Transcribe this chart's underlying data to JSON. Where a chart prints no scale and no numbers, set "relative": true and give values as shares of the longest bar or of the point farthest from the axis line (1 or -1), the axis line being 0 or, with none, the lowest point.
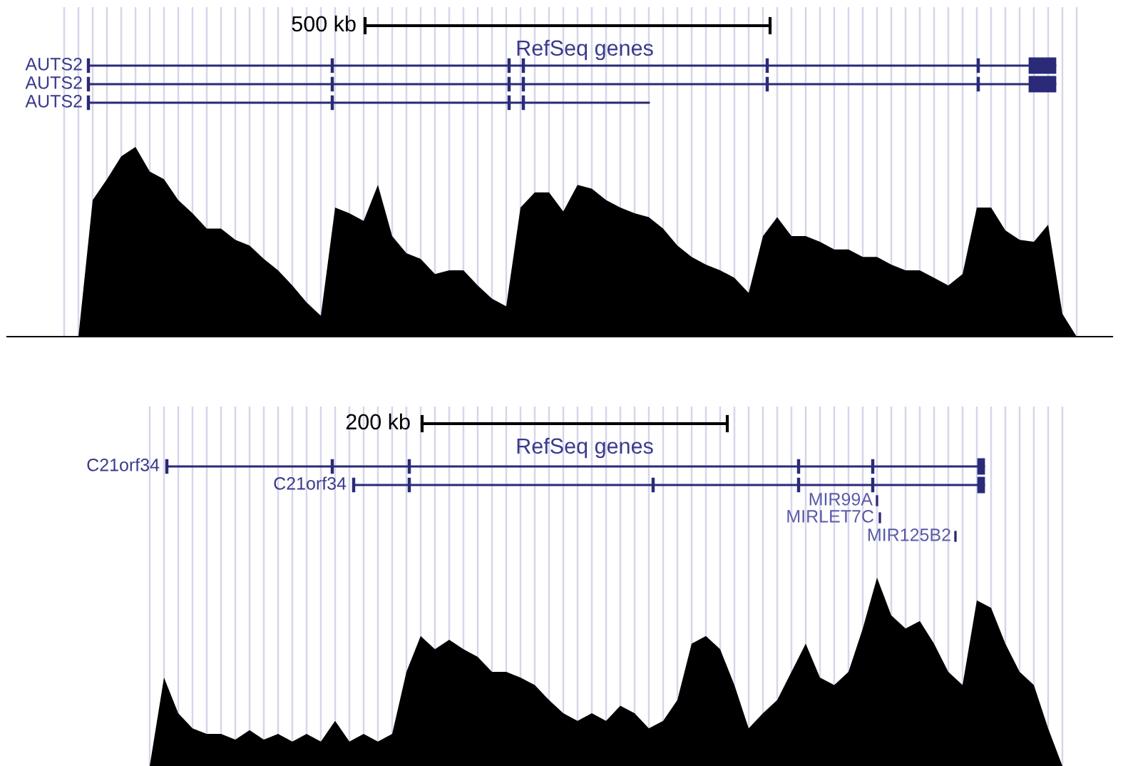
{
  "chart_data": [
    {
      "type": "area",
      "relative": true,
      "color": "#000000",
      "grid": "x",
      "annotations": [
        "500 kb",
        "RefSeq genes",
        "AUTS2",
        "AUTS2",
        "AUTS2"
      ],
      "categories": [
        null,
        null,
        null,
        null,
        null,
        null,
        null,
        null,
        null,
        null,
        null,
        null,
        null,
        null,
        null,
        null,
        null,
        null,
        null,
        null,
        null,
        null,
        null,
        null,
        null,
        null,
        null,
        null,
        null,
        null,
        null,
        null,
        null,
        null,
        null,
        null,
        null,
        null,
        null,
        null,
        null,
        null,
        null,
        null,
        null,
        null,
        null,
        null,
        null,
        null,
        null,
        null,
        null,
        null,
        null,
        null,
        null,
        null,
        null,
        null,
        null,
        null,
        null,
        null,
        null,
        null,
        null,
        null,
        null,
        null,
        null,
        null
      ],
      "values": [
        0,
        0,
        0.72,
        0.83,
        0.95,
        1,
        0.87,
        0.83,
        0.72,
        0.65,
        0.57,
        0.57,
        0.51,
        0.48,
        0.41,
        0.35,
        0.27,
        0.18,
        0.11,
        0.68,
        0.65,
        0.61,
        0.8,
        0.53,
        0.44,
        0.41,
        0.33,
        0.35,
        0.35,
        0.27,
        0.2,
        0.16,
        0.68,
        0.76,
        0.76,
        0.66,
        0.8,
        0.78,
        0.72,
        0.68,
        0.65,
        0.63,
        0.57,
        0.48,
        0.42,
        0.38,
        0.35,
        0.31,
        0.23,
        0.53,
        0.63,
        0.53,
        0.53,
        0.5,
        0.46,
        0.46,
        0.42,
        0.42,
        0.38,
        0.35,
        0.35,
        0.31,
        0.27,
        0.33,
        0.68,
        0.68,
        0.56,
        0.51,
        0.5,
        0.59,
        0.12,
        0
      ]
    },
    {
      "type": "area",
      "relative": true,
      "color": "#000000",
      "grid": "x",
      "annotations": [
        "200 kb",
        "RefSeq genes",
        "C21orf34",
        "C21orf34",
        "MIR99A",
        "MIRLET7C",
        "MIR125B2"
      ],
      "categories": [
        null,
        null,
        null,
        null,
        null,
        null,
        null,
        null,
        null,
        null,
        null,
        null,
        null,
        null,
        null,
        null,
        null,
        null,
        null,
        null,
        null,
        null,
        null,
        null,
        null,
        null,
        null,
        null,
        null,
        null,
        null,
        null,
        null,
        null,
        null,
        null,
        null,
        null,
        null,
        null,
        null,
        null,
        null,
        null,
        null,
        null,
        null,
        null,
        null,
        null,
        null,
        null,
        null,
        null,
        null,
        null,
        null,
        null,
        null,
        null,
        null,
        null,
        null,
        null,
        null
      ],
      "values": [
        0,
        0.47,
        0.28,
        0.2,
        0.17,
        0.17,
        0.14,
        0.19,
        0.14,
        0.17,
        0.13,
        0.17,
        0.13,
        0.24,
        0.13,
        0.17,
        0.13,
        0.17,
        0.5,
        0.69,
        0.62,
        0.67,
        0.62,
        0.58,
        0.5,
        0.5,
        0.47,
        0.43,
        0.35,
        0.28,
        0.24,
        0.28,
        0.24,
        0.32,
        0.28,
        0.2,
        0.24,
        0.35,
        0.65,
        0.69,
        0.62,
        0.43,
        0.2,
        0.28,
        0.35,
        0.5,
        0.65,
        0.47,
        0.43,
        0.5,
        0.73,
        1,
        0.8,
        0.73,
        0.77,
        0.65,
        0.5,
        0.43,
        0.88,
        0.84,
        0.65,
        0.5,
        0.43,
        0.2,
        0
      ]
    }
  ]
}
